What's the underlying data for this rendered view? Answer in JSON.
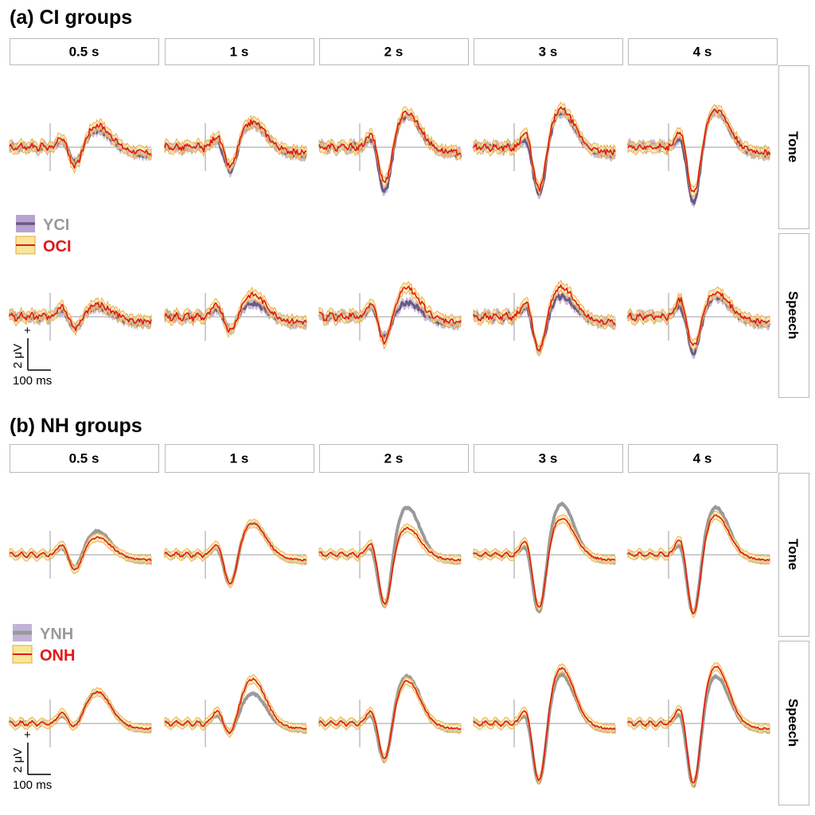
{
  "colors": {
    "young_ci_line": "#6b5a86",
    "young_ci_band": "#b7a3cf",
    "young_nh_line": "#9a9a9a",
    "young_nh_band": "#c3b3d8",
    "old_line": "#e01818",
    "old_band": "#f7e79a",
    "old_band_edge": "#e9a436",
    "young_label": "#9a9a9a",
    "old_label": "#e01818",
    "strip_border": "#b9b9b9",
    "axis_ref": "#9d9d9d"
  },
  "panel_a": {
    "title": "(a) CI groups",
    "legend": {
      "young": "YCI",
      "old": "OCI"
    }
  },
  "panel_b": {
    "title": "(b) NH groups",
    "legend": {
      "young": "YNH",
      "old": "ONH"
    }
  },
  "columns": [
    "0.5 s",
    "1 s",
    "2 s",
    "3 s",
    "4 s"
  ],
  "rows": [
    "Tone",
    "Speech"
  ],
  "scale_bar": {
    "voltage": "2 μV",
    "plus": "+",
    "time": "100 ms"
  },
  "chart_data": [
    {
      "type": "line",
      "panel": "(a) CI groups",
      "series_names": [
        "YCI",
        "OCI"
      ],
      "unit_y": "μV",
      "time_scale_ms": 100,
      "voltage_scale_uV": 2,
      "peaks_uV": {
        "Tone": {
          "0.5 s": {
            "YCI": {
              "N1": -1.2,
              "P2": 1.1
            },
            "OCI": {
              "N1": -1.5,
              "P2": 1.4
            }
          },
          "1 s": {
            "YCI": {
              "N1": -1.8,
              "P2": 1.5
            },
            "OCI": {
              "N1": -1.6,
              "P2": 1.6
            }
          },
          "2 s": {
            "YCI": {
              "N1": -3.2,
              "P2": 2.0
            },
            "OCI": {
              "N1": -2.7,
              "P2": 2.2
            }
          },
          "3 s": {
            "YCI": {
              "N1": -3.5,
              "P2": 2.2
            },
            "OCI": {
              "N1": -3.2,
              "P2": 2.4
            }
          },
          "4 s": {
            "YCI": {
              "N1": -4.0,
              "P2": 2.3
            },
            "OCI": {
              "N1": -3.5,
              "P2": 2.4
            }
          }
        },
        "Speech": {
          "0.5 s": {
            "YCI": {
              "N1": -0.8,
              "P2": 0.6
            },
            "OCI": {
              "N1": -0.9,
              "P2": 0.8
            }
          },
          "1 s": {
            "YCI": {
              "N1": -1.0,
              "P2": 0.9
            },
            "OCI": {
              "N1": -1.2,
              "P2": 1.4
            }
          },
          "2 s": {
            "YCI": {
              "N1": -1.5,
              "P2": 0.9
            },
            "OCI": {
              "N1": -2.0,
              "P2": 1.8
            }
          },
          "3 s": {
            "YCI": {
              "N1": -2.4,
              "P2": 1.3
            },
            "OCI": {
              "N1": -2.5,
              "P2": 1.9
            }
          },
          "4 s": {
            "YCI": {
              "N1": -2.6,
              "P2": 1.3
            },
            "OCI": {
              "N1": -2.2,
              "P2": 1.5
            }
          }
        }
      }
    },
    {
      "type": "line",
      "panel": "(b) NH groups",
      "series_names": [
        "YNH",
        "ONH"
      ],
      "unit_y": "μV",
      "time_scale_ms": 100,
      "voltage_scale_uV": 2,
      "peaks_uV": {
        "Tone": {
          "0.5 s": {
            "YNH": {
              "N1": -1.1,
              "P2": 1.5
            },
            "ONH": {
              "N1": -1.2,
              "P2": 1.1
            }
          },
          "1 s": {
            "YNH": {
              "N1": -2.3,
              "P2": 2.0
            },
            "ONH": {
              "N1": -2.3,
              "P2": 2.0
            }
          },
          "2 s": {
            "YNH": {
              "N1": -3.9,
              "P2": 3.0
            },
            "ONH": {
              "N1": -3.5,
              "P2": 1.7
            }
          },
          "3 s": {
            "YNH": {
              "N1": -4.3,
              "P2": 3.2
            },
            "ONH": {
              "N1": -3.9,
              "P2": 2.3
            }
          },
          "4 s": {
            "YNH": {
              "N1": -4.4,
              "P2": 3.0
            },
            "ONH": {
              "N1": -4.3,
              "P2": 2.5
            }
          }
        },
        "Speech": {
          "0.5 s": {
            "YNH": {
              "N1": -0.6,
              "P2": 2.0
            },
            "ONH": {
              "N1": -0.6,
              "P2": 2.0
            }
          },
          "1 s": {
            "YNH": {
              "N1": -1.0,
              "P2": 1.9
            },
            "ONH": {
              "N1": -1.2,
              "P2": 2.8
            }
          },
          "2 s": {
            "YNH": {
              "N1": -3.0,
              "P2": 3.0
            },
            "ONH": {
              "N1": -2.8,
              "P2": 2.7
            }
          },
          "3 s": {
            "YNH": {
              "N1": -4.4,
              "P2": 3.1
            },
            "ONH": {
              "N1": -4.4,
              "P2": 3.5
            }
          },
          "4 s": {
            "YNH": {
              "N1": -4.6,
              "P2": 3.0
            },
            "ONH": {
              "N1": -4.6,
              "P2": 3.6
            }
          }
        }
      }
    }
  ]
}
